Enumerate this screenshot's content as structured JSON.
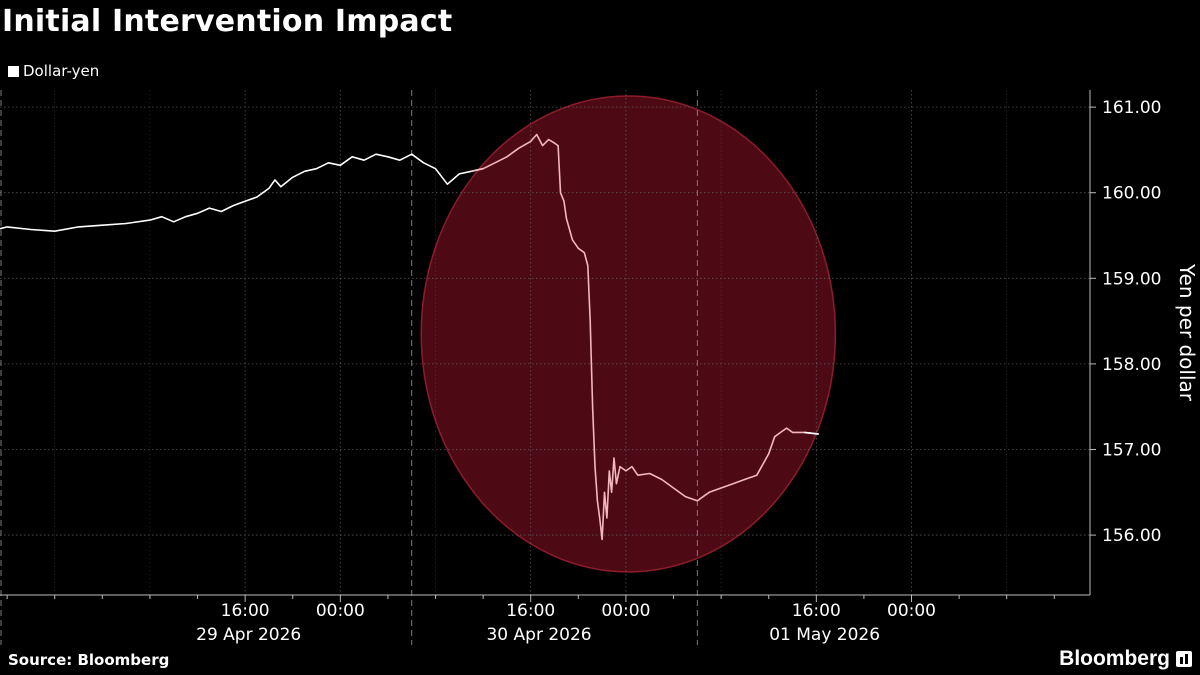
{
  "header": {
    "title": "Initial Intervention Impact"
  },
  "legend": {
    "label": "Dollar-yen",
    "color": "#ffffff"
  },
  "footer": {
    "source": "Source: Bloomberg",
    "brand": "Bloomberg"
  },
  "colors": {
    "background": "#000000",
    "grid": "#6a6a6a",
    "line": "#ffffff",
    "highlight_fill": "#4d0a14",
    "highlight_stroke": "#8c1c2c",
    "line_in_highlight": "#f2b8be"
  },
  "chart_data": {
    "type": "line",
    "title": "Initial Intervention Impact",
    "ylabel": "Yen per dollar",
    "ylim": [
      155.3,
      161.2
    ],
    "yticks": [
      156,
      157,
      158,
      159,
      160,
      161
    ],
    "ytick_labels": [
      "156.00",
      "157.00",
      "158.00",
      "159.00",
      "160.00",
      "161.00"
    ],
    "x_unit": "hours since 29 Apr 2026 00:00 (local)",
    "xlim": [
      -4.6,
      87.0
    ],
    "xticks": [
      {
        "x": 16,
        "label": "16:00"
      },
      {
        "x": 24,
        "label": "00:00"
      },
      {
        "x": 40,
        "label": "16:00"
      },
      {
        "x": 48,
        "label": "00:00"
      },
      {
        "x": 64,
        "label": "16:00"
      },
      {
        "x": 72,
        "label": "00:00"
      }
    ],
    "date_labels": [
      {
        "x": 16.3,
        "label": "29 Apr 2026"
      },
      {
        "x": 40.7,
        "label": "30 Apr 2026"
      },
      {
        "x": 64.7,
        "label": "01 May 2026"
      }
    ],
    "day_separators": [
      30.0,
      54.0
    ],
    "grid": true,
    "legend_position": "top-left",
    "highlight": {
      "shape": "circle",
      "center": [
        48.2,
        158.35
      ],
      "rx_hours": 17.4,
      "ry_yen": 2.78
    },
    "series": [
      {
        "name": "Dollar-yen",
        "points": [
          [
            -4.6,
            159.58
          ],
          [
            -4.0,
            159.6
          ],
          [
            -2.0,
            159.57
          ],
          [
            0.0,
            159.55
          ],
          [
            2.0,
            159.6
          ],
          [
            4.0,
            159.62
          ],
          [
            6.0,
            159.64
          ],
          [
            8.0,
            159.68
          ],
          [
            9.0,
            159.72
          ],
          [
            10.0,
            159.66
          ],
          [
            11.0,
            159.72
          ],
          [
            12.0,
            159.76
          ],
          [
            13.0,
            159.82
          ],
          [
            14.0,
            159.78
          ],
          [
            15.0,
            159.85
          ],
          [
            16.0,
            159.9
          ],
          [
            17.0,
            159.95
          ],
          [
            18.0,
            160.05
          ],
          [
            18.5,
            160.15
          ],
          [
            19.0,
            160.07
          ],
          [
            20.0,
            160.18
          ],
          [
            21.0,
            160.25
          ],
          [
            22.0,
            160.28
          ],
          [
            23.0,
            160.35
          ],
          [
            24.0,
            160.32
          ],
          [
            25.0,
            160.42
          ],
          [
            26.0,
            160.38
          ],
          [
            27.0,
            160.45
          ],
          [
            28.0,
            160.42
          ],
          [
            29.0,
            160.38
          ],
          [
            30.0,
            160.45
          ],
          [
            31.0,
            160.35
          ],
          [
            32.0,
            160.28
          ],
          [
            33.0,
            160.1
          ],
          [
            34.0,
            160.22
          ],
          [
            35.0,
            160.25
          ],
          [
            36.0,
            160.28
          ],
          [
            37.0,
            160.35
          ],
          [
            38.0,
            160.42
          ],
          [
            39.0,
            160.52
          ],
          [
            40.0,
            160.6
          ],
          [
            40.5,
            160.68
          ],
          [
            41.0,
            160.55
          ],
          [
            41.5,
            160.62
          ],
          [
            42.0,
            160.58
          ],
          [
            42.3,
            160.55
          ],
          [
            42.5,
            160.0
          ],
          [
            42.8,
            159.9
          ],
          [
            43.0,
            159.7
          ],
          [
            43.5,
            159.45
          ],
          [
            44.0,
            159.35
          ],
          [
            44.5,
            159.3
          ],
          [
            44.8,
            159.15
          ],
          [
            45.0,
            158.5
          ],
          [
            45.2,
            157.5
          ],
          [
            45.4,
            156.8
          ],
          [
            45.6,
            156.4
          ],
          [
            45.8,
            156.2
          ],
          [
            46.0,
            155.95
          ],
          [
            46.2,
            156.5
          ],
          [
            46.4,
            156.2
          ],
          [
            46.6,
            156.75
          ],
          [
            46.8,
            156.5
          ],
          [
            47.0,
            156.9
          ],
          [
            47.2,
            156.6
          ],
          [
            47.5,
            156.8
          ],
          [
            48.0,
            156.75
          ],
          [
            48.5,
            156.8
          ],
          [
            49.0,
            156.7
          ],
          [
            50.0,
            156.72
          ],
          [
            51.0,
            156.65
          ],
          [
            52.0,
            156.55
          ],
          [
            53.0,
            156.45
          ],
          [
            54.0,
            156.4
          ],
          [
            55.0,
            156.5
          ],
          [
            56.0,
            156.55
          ],
          [
            57.0,
            156.6
          ],
          [
            58.0,
            156.65
          ],
          [
            59.0,
            156.7
          ],
          [
            60.0,
            156.95
          ],
          [
            60.5,
            157.15
          ],
          [
            61.0,
            157.2
          ],
          [
            61.5,
            157.25
          ],
          [
            62.0,
            157.2
          ],
          [
            63.0,
            157.2
          ],
          [
            64.2,
            157.18
          ]
        ]
      }
    ]
  }
}
